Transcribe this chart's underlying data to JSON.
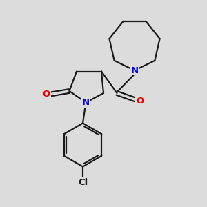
{
  "bg_color": "#dcdcdc",
  "bond_color": "#1a1a1a",
  "N_color": "#0000ee",
  "O_color": "#ee0000",
  "Cl_color": "#1a1a1a",
  "line_width": 1.6,
  "figsize": [
    3.0,
    3.0
  ],
  "dpi": 100,
  "xlim": [
    0,
    10
  ],
  "ylim": [
    0,
    10
  ]
}
